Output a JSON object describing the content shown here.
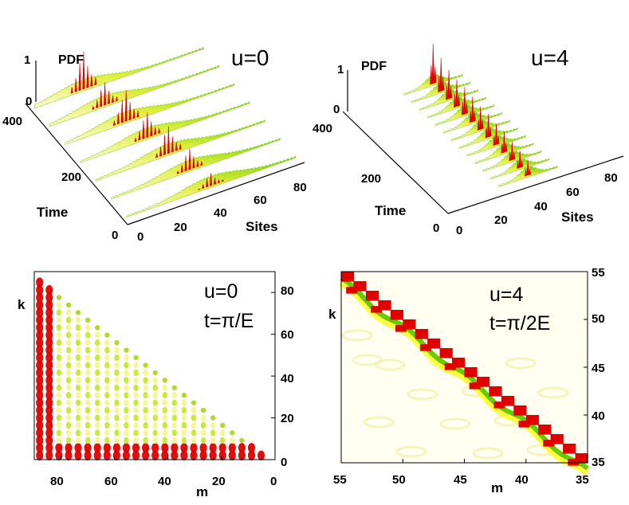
{
  "chart_data": [
    {
      "type": "surface",
      "panel": "top-left",
      "annotation": "u=0",
      "zlabel": "PDF",
      "z_ticks": [
        "1",
        "0"
      ],
      "time_label": "Time",
      "time_ticks": [
        "400",
        "200",
        "0"
      ],
      "sites_label": "Sites",
      "sites_ticks": [
        "0",
        "20",
        "40",
        "60",
        "80"
      ],
      "xlim": [
        0,
        90
      ],
      "tlim": [
        0,
        400
      ],
      "zlim": [
        0,
        1
      ],
      "description_series": {
        "name": "PDF",
        "times": [
          20,
          80,
          140,
          200,
          260,
          320,
          380
        ],
        "peak_site": [
          45,
          42,
          39,
          36,
          33,
          30,
          27
        ],
        "peak_value": [
          0.35,
          0.55,
          0.7,
          0.65,
          0.8,
          0.6,
          0.95
        ]
      }
    },
    {
      "type": "surface",
      "panel": "top-right",
      "annotation": "u=4",
      "zlabel": "PDF",
      "z_ticks": [
        "1",
        "0"
      ],
      "time_label": "Time",
      "time_ticks": [
        "400",
        "200",
        "0"
      ],
      "sites_label": "Sites",
      "sites_ticks": [
        "0",
        "20",
        "40",
        "60",
        "80"
      ],
      "xlim": [
        0,
        90
      ],
      "tlim": [
        0,
        400
      ],
      "zlim": [
        0,
        1
      ],
      "description_series": {
        "name": "PDF",
        "times": [
          30,
          60,
          90,
          120,
          150,
          180,
          210,
          240,
          270,
          300,
          330,
          360,
          390
        ],
        "peak_site": [
          45,
          45,
          45,
          45,
          45,
          45,
          45,
          45,
          45,
          45,
          45,
          45,
          45
        ],
        "peak_value": [
          0.4,
          0.45,
          0.5,
          0.55,
          0.55,
          0.6,
          0.6,
          0.65,
          0.7,
          0.7,
          0.75,
          0.85,
          1.0
        ]
      }
    },
    {
      "type": "heatmap",
      "panel": "bottom-left",
      "annotation_line1": "u=0",
      "annotation_line2": "t=π/E",
      "xlabel": "m",
      "ylabel": "k",
      "x_ticks": [
        "80",
        "60",
        "40",
        "20",
        "0"
      ],
      "y_ticks": [
        "80",
        "60",
        "40",
        "20",
        "0"
      ],
      "xlim": [
        90,
        0
      ],
      "ylim": [
        0,
        90
      ]
    },
    {
      "type": "heatmap",
      "panel": "bottom-right",
      "annotation_line1": "u=4",
      "annotation_line2": "t=π/2E",
      "xlabel": "m",
      "ylabel": "k",
      "x_ticks": [
        "55",
        "50",
        "45",
        "40",
        "35"
      ],
      "y_ticks": [
        "55",
        "50",
        "45",
        "40",
        "35"
      ],
      "xlim": [
        55,
        35
      ],
      "ylim": [
        35,
        55
      ]
    }
  ],
  "colors": {
    "low": "#fffde0",
    "mid": "#ffff40",
    "high": "#66cc00",
    "peak": "#e00000"
  }
}
